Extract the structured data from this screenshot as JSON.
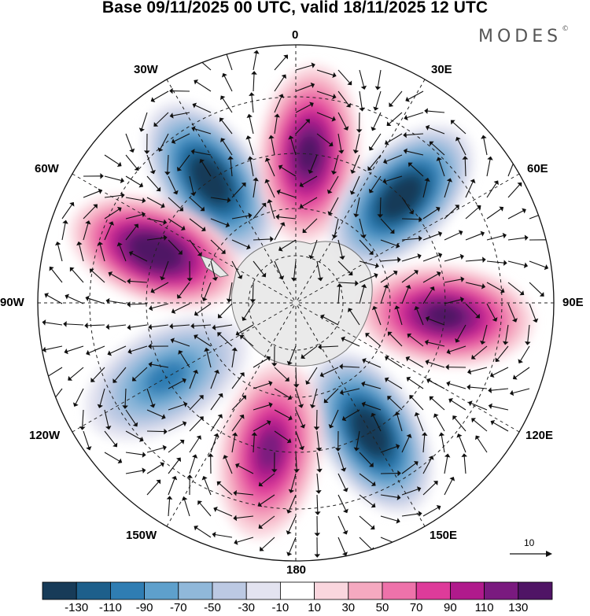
{
  "title": "Base 09/11/2025 00 UTC, valid 18/11/2025 12 UTC",
  "brand": "MODES",
  "brand_mark": "©",
  "longitude_labels": {
    "lon_0": "0",
    "lon_30e": "30E",
    "lon_60e": "60E",
    "lon_90e": "90E",
    "lon_120e": "120E",
    "lon_150e": "150E",
    "lon_180": "180",
    "lon_150w": "150W",
    "lon_120w": "120W",
    "lon_90w": "90W",
    "lon_60w": "60W",
    "lon_30w": "30W"
  },
  "reference_vector": {
    "label": "10"
  },
  "colorbar": {
    "ticks": [
      "-130",
      "-110",
      "-90",
      "-70",
      "-50",
      "-30",
      "-10",
      "10",
      "30",
      "50",
      "70",
      "90",
      "110",
      "130"
    ],
    "colors": [
      "#173b58",
      "#1d5f8b",
      "#2f7db3",
      "#5ea0cc",
      "#90b8da",
      "#bcc9e3",
      "#e3e3f0",
      "#ffffff",
      "#fad6de",
      "#f5a9c0",
      "#ee72aa",
      "#de3b9a",
      "#b01a8c",
      "#7a1a7f",
      "#4f1465"
    ]
  },
  "anomaly_centers": [
    {
      "name": "NW low",
      "sign": "negative",
      "lon_deg": -35,
      "peak": -130
    },
    {
      "name": "N high",
      "sign": "positive",
      "lon_deg": 5,
      "peak": 120
    },
    {
      "name": "NE low",
      "sign": "negative",
      "lon_deg": 45,
      "peak": -130
    },
    {
      "name": "E high",
      "sign": "positive",
      "lon_deg": 95,
      "peak": 120
    },
    {
      "name": "SE low",
      "sign": "negative",
      "lon_deg": 150,
      "peak": -130
    },
    {
      "name": "S high",
      "sign": "positive",
      "lon_deg": -170,
      "peak": 100
    },
    {
      "name": "SW low",
      "sign": "negative",
      "lon_deg": -120,
      "peak": -80
    },
    {
      "name": "W high",
      "sign": "positive",
      "lon_deg": -70,
      "peak": 130
    }
  ]
}
